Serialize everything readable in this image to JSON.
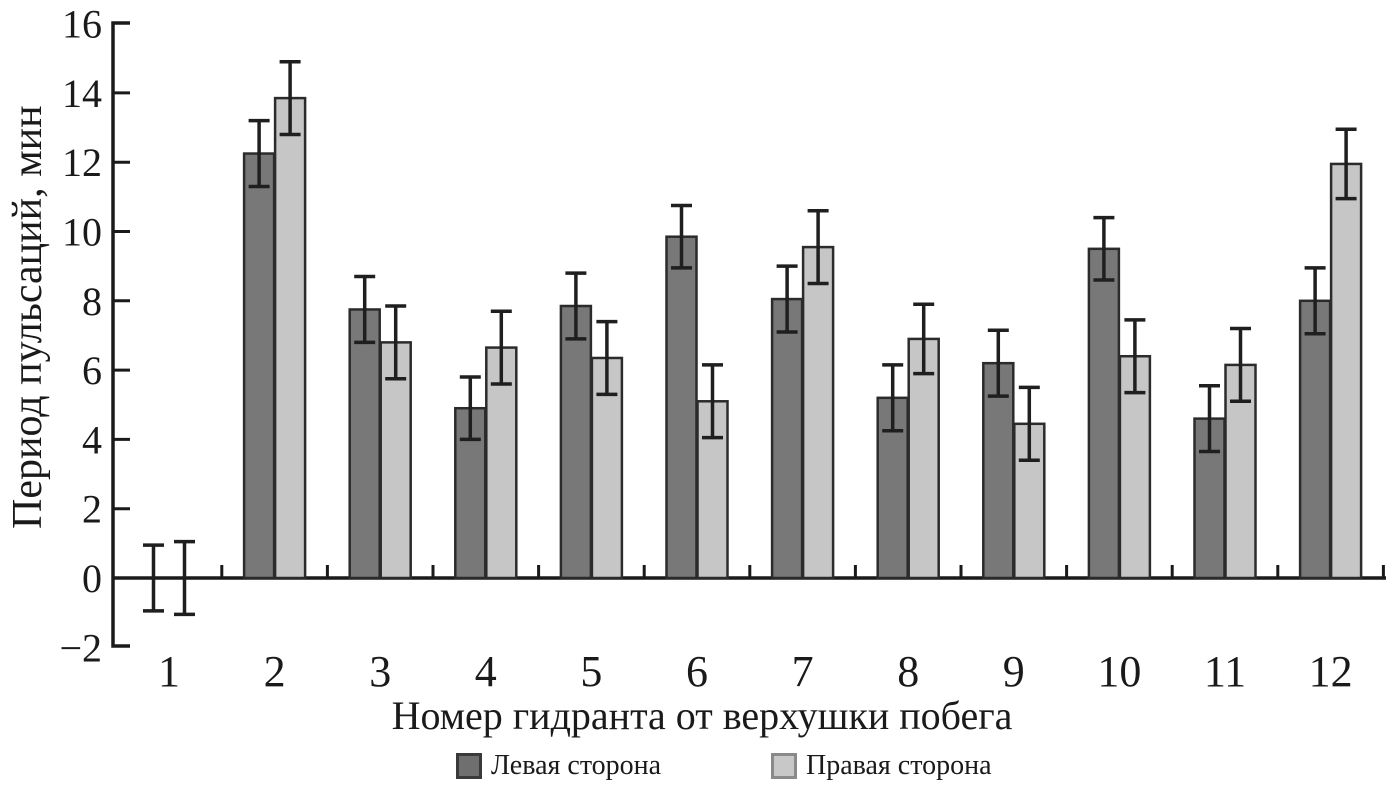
{
  "chart_data": {
    "type": "bar",
    "title": "",
    "xlabel": "Номер гидранта от верхушки побега",
    "ylabel": "Период пульсаций, мин",
    "ylim": [
      -2,
      16
    ],
    "ytick_step": 2,
    "ytick_labels": [
      "16",
      "14",
      "12",
      "10",
      "8",
      "6",
      "4",
      "2",
      "0",
      "−2"
    ],
    "categories": [
      "1",
      "2",
      "3",
      "4",
      "5",
      "6",
      "7",
      "8",
      "9",
      "10",
      "11",
      "12"
    ],
    "series": [
      {
        "name": "Левая сторона",
        "color": "#787878",
        "values": [
          0,
          12.25,
          7.75,
          4.9,
          7.85,
          9.85,
          8.05,
          5.2,
          6.2,
          9.5,
          4.6,
          8.0
        ],
        "errors": [
          0.95,
          0.95,
          0.95,
          0.9,
          0.95,
          0.9,
          0.95,
          0.95,
          0.95,
          0.9,
          0.95,
          0.95
        ]
      },
      {
        "name": "Правая сторона",
        "color": "#c6c6c6",
        "values": [
          0,
          13.85,
          6.8,
          6.65,
          6.35,
          5.1,
          9.55,
          6.9,
          4.45,
          6.4,
          6.15,
          11.95
        ],
        "errors": [
          1.05,
          1.05,
          1.05,
          1.05,
          1.05,
          1.05,
          1.05,
          1.0,
          1.05,
          1.05,
          1.05,
          1.0
        ]
      }
    ],
    "grid": false,
    "legend_position": "bottom",
    "bar_border_color": "#2b2b2b",
    "error_bar_color": "#1f1f1f",
    "axis_color": "#1a1a1a"
  },
  "legend": {
    "items": [
      {
        "label": "Левая сторона",
        "fill": "#6f6f6f",
        "border": "#3a3a3a"
      },
      {
        "label": "Правая сторона",
        "fill": "#c8c8c8",
        "border": "#8a8a8a"
      }
    ]
  }
}
